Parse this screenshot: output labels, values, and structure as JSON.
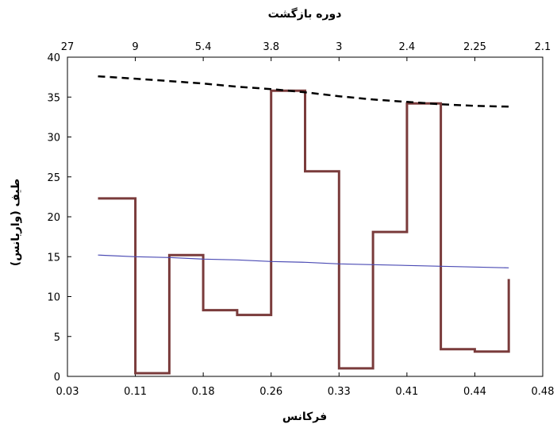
{
  "chart_data": {
    "type": "line",
    "top_axis_title": "دوره بازگشت",
    "xlabel": "فرکانس",
    "ylabel": "طیف (واریانس)",
    "ylim": [
      0,
      40
    ],
    "yticks": [
      0,
      5,
      10,
      15,
      20,
      25,
      30,
      35,
      40
    ],
    "xticks_bottom": [
      "0.03",
      "0.11",
      "0.18",
      "0.26",
      "0.33",
      "0.41",
      "0.44",
      "0.48"
    ],
    "xticks_top": [
      "27",
      "9",
      "5.4",
      "3.8",
      "3",
      "2.4",
      "2.25",
      "2.1"
    ],
    "xlim": [
      0,
      7
    ],
    "grid": false,
    "colors": {
      "spectrum": "#7a3b3b",
      "background": "#4b4bb4",
      "upper": "#000000"
    },
    "series": [
      {
        "style": "step",
        "x": [
          0.45,
          1.0,
          1.0,
          1.5,
          1.5,
          2.0,
          2.0,
          2.5,
          2.5,
          3.0,
          3.0,
          3.5,
          3.5,
          4.0,
          4.0,
          4.5,
          4.5,
          5.0,
          5.0,
          5.5,
          5.5,
          6.0,
          6.0,
          6.5,
          6.5
        ],
        "values": [
          22.3,
          22.3,
          0.4,
          0.4,
          15.2,
          15.2,
          8.3,
          8.3,
          7.7,
          7.7,
          35.8,
          35.8,
          25.7,
          25.7,
          1.0,
          1.0,
          18.1,
          18.1,
          34.2,
          34.2,
          3.4,
          3.4,
          3.1,
          3.1,
          12.2
        ]
      },
      {
        "style": "solid",
        "x": [
          0.45,
          1.0,
          1.5,
          2.0,
          2.5,
          3.0,
          3.5,
          4.0,
          4.5,
          5.0,
          5.5,
          6.0,
          6.5
        ],
        "values": [
          15.2,
          15.0,
          14.9,
          14.7,
          14.6,
          14.4,
          14.3,
          14.1,
          14.0,
          13.9,
          13.8,
          13.7,
          13.6
        ]
      },
      {
        "style": "dashed",
        "x": [
          0.45,
          1.0,
          1.5,
          2.0,
          2.5,
          3.0,
          3.5,
          4.0,
          4.5,
          5.0,
          5.5,
          6.0,
          6.5
        ],
        "values": [
          37.6,
          37.3,
          37.0,
          36.7,
          36.3,
          36.0,
          35.6,
          35.1,
          34.7,
          34.4,
          34.1,
          33.9,
          33.8
        ]
      }
    ]
  }
}
